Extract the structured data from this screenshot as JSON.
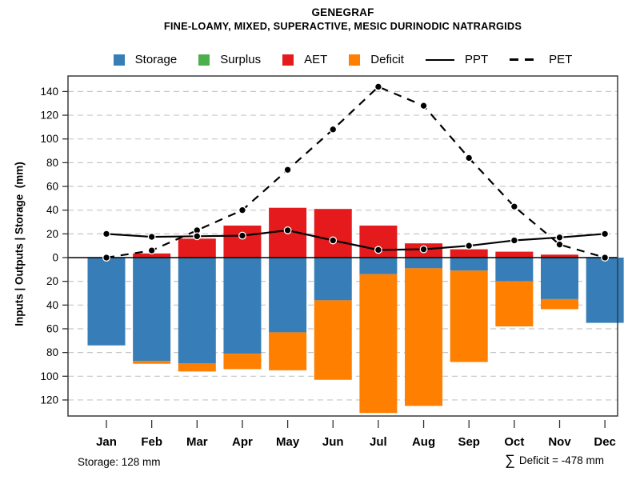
{
  "header": {
    "title": "GENEGRAF",
    "subtitle": "FINE-LOAMY, MIXED, SUPERACTIVE, MESIC DURINODIC NATRARGIDS"
  },
  "legend": {
    "items": [
      {
        "label": "Storage",
        "swatch": "square",
        "color": "#377EB8"
      },
      {
        "label": "Surplus",
        "swatch": "square",
        "color": "#4DAF4A"
      },
      {
        "label": "AET",
        "swatch": "square",
        "color": "#E41A1C"
      },
      {
        "label": "Deficit",
        "swatch": "square",
        "color": "#FF7F00"
      },
      {
        "label": "PPT",
        "swatch": "solid-line",
        "color": "#000000"
      },
      {
        "label": "PET",
        "swatch": "dashed-line",
        "color": "#000000"
      }
    ]
  },
  "chart_data": {
    "type": "bar",
    "title": "GENEGRAF",
    "subtitle": "FINE-LOAMY, MIXED, SUPERACTIVE, MESIC DURINODIC NATRARGIDS",
    "categories": [
      "Jan",
      "Feb",
      "Mar",
      "Apr",
      "May",
      "Jun",
      "Jul",
      "Aug",
      "Sep",
      "Oct",
      "Nov",
      "Dec"
    ],
    "series": [
      {
        "name": "Storage",
        "type": "bar",
        "color": "#377EB8",
        "values": [
          -74,
          -87,
          -89,
          -81,
          -63,
          -36,
          -14,
          -9,
          -11,
          -20,
          -35,
          -55
        ]
      },
      {
        "name": "Surplus",
        "type": "bar",
        "color": "#4DAF4A",
        "values": [
          0,
          0,
          0,
          0,
          0,
          0,
          0,
          0,
          0,
          0,
          0,
          0
        ]
      },
      {
        "name": "AET",
        "type": "bar",
        "color": "#E41A1C",
        "values": [
          0,
          3.5,
          16,
          27,
          42,
          41,
          27,
          12,
          7,
          5,
          2.5,
          0
        ]
      },
      {
        "name": "Deficit",
        "type": "bar",
        "color": "#FF7F00",
        "values": [
          0,
          -2.5,
          -7,
          -13,
          -32,
          -67,
          -117,
          -116,
          -77,
          -38,
          -8.5,
          0
        ]
      },
      {
        "name": "PPT",
        "type": "line",
        "style": "solid",
        "color": "#000000",
        "values": [
          20,
          17.5,
          18,
          18.5,
          23,
          14.5,
          6.5,
          7,
          10,
          14.5,
          17,
          20
        ]
      },
      {
        "name": "PET",
        "type": "line",
        "style": "dashed",
        "color": "#000000",
        "values": [
          0,
          6,
          23,
          40,
          74,
          108,
          144,
          128,
          84,
          43,
          11,
          0
        ]
      }
    ],
    "xlabel": "",
    "ylabel": "Inputs | Outputs | Storage  (mm)",
    "ylim": [
      -133,
      155
    ],
    "yticks": [
      140,
      120,
      100,
      80,
      60,
      40,
      20,
      0,
      -20,
      -40,
      -60,
      -80,
      -100,
      -120
    ],
    "ytick_labels": [
      "140",
      "120",
      "100",
      "80",
      "60",
      "40",
      "20",
      "0",
      "20",
      "40",
      "60",
      "80",
      "100",
      "120"
    ],
    "grid": "horizontal-dashed",
    "legend_position": "top"
  },
  "footer": {
    "storage_note": "Storage: 128 mm",
    "sum_symbol": "∑",
    "deficit_note": "Deficit = -478 mm"
  }
}
